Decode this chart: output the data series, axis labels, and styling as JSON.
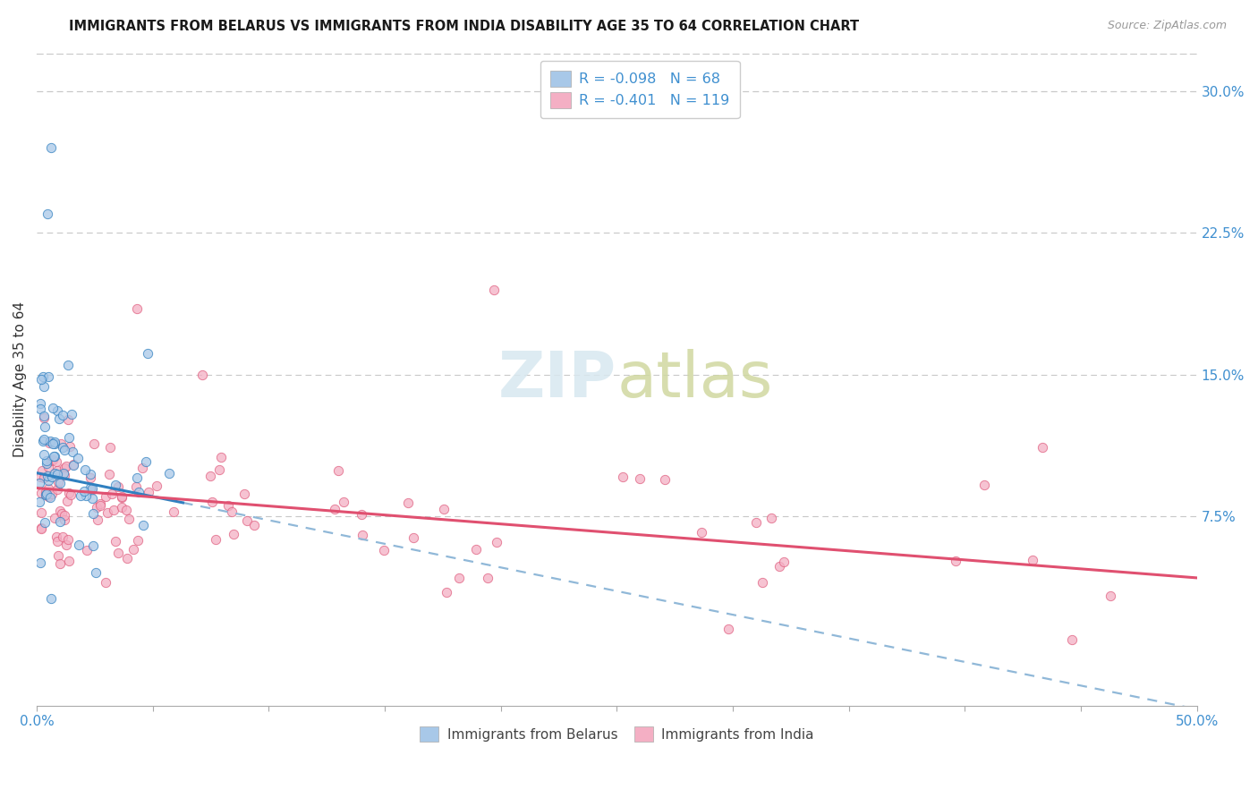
{
  "title": "IMMIGRANTS FROM BELARUS VS IMMIGRANTS FROM INDIA DISABILITY AGE 35 TO 64 CORRELATION CHART",
  "source": "Source: ZipAtlas.com",
  "ylabel": "Disability Age 35 to 64",
  "ylabel_right_ticks": [
    "30.0%",
    "22.5%",
    "15.0%",
    "7.5%"
  ],
  "ylabel_right_vals": [
    0.3,
    0.225,
    0.15,
    0.075
  ],
  "xmin": 0.0,
  "xmax": 0.5,
  "ymin": -0.025,
  "ymax": 0.32,
  "legend_belarus": "Immigrants from Belarus",
  "legend_india": "Immigrants from India",
  "R_belarus": -0.098,
  "N_belarus": 68,
  "R_india": -0.401,
  "N_india": 119,
  "color_belarus": "#a8c8e8",
  "color_india": "#f4afc4",
  "color_blue_text": "#4090d0",
  "color_pink_text": "#e06080",
  "trendline_belarus": "#3080c0",
  "trendline_india": "#e05070",
  "trendline_dashed_color": "#90b8d8",
  "background_color": "#ffffff",
  "grid_color": "#c8c8c8",
  "scatter_alpha": 0.75,
  "scatter_size": 55
}
